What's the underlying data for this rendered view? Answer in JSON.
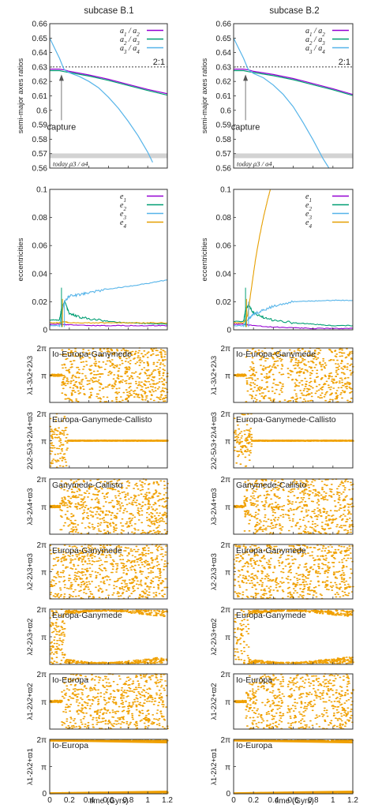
{
  "figure": {
    "columns": [
      {
        "title": "subcase B.1"
      },
      {
        "title": "subcase B.2"
      }
    ],
    "xlabel": "time (Gyrs)"
  },
  "colors": {
    "a1_a2": "#9400d3",
    "a2_a3": "#009e73",
    "a3_a4": "#56b4e9",
    "e4": "#e69f00",
    "angles": "#f0a000",
    "today_band": "#d3d3d3",
    "axes": "#333333"
  },
  "chart_data": [
    {
      "id": "ratios-b1",
      "type": "line",
      "ylabel": "semi-major axes ratios",
      "xlim": [
        0,
        1.2
      ],
      "ylim": [
        0.56,
        0.66
      ],
      "x_ticks": [
        "0",
        "0.2",
        "0.4",
        "0.6",
        "0.8",
        "1",
        "1.2"
      ],
      "y_ticks": [
        "0.56",
        "0.57",
        "0.58",
        "0.59",
        "0.6",
        "0.61",
        "0.62",
        "0.63",
        "0.64",
        "0.65",
        "0.66"
      ],
      "legend": [
        "a1 / a2",
        "a2 / a3",
        "a3 / a4"
      ],
      "legend_position": "top-right",
      "reference_line": {
        "y": 0.63,
        "label": "2:1"
      },
      "today_band": {
        "y": 0.5685,
        "label": "today a3 / a4"
      },
      "annotation": {
        "text": "capture",
        "x": 0.12,
        "y": 0.627
      },
      "series": [
        {
          "name": "a1 / a2",
          "x": [
            0,
            0.1,
            0.15,
            0.2,
            0.4,
            0.6,
            0.8,
            1.0,
            1.2
          ],
          "values": [
            0.6285,
            0.6285,
            0.628,
            0.627,
            0.6245,
            0.6215,
            0.618,
            0.6145,
            0.6115
          ]
        },
        {
          "name": "a2 / a3",
          "x": [
            0,
            0.1,
            0.15,
            0.2,
            0.4,
            0.6,
            0.8,
            1.0,
            1.2
          ],
          "values": [
            0.6275,
            0.6275,
            0.6268,
            0.6262,
            0.6237,
            0.6207,
            0.6172,
            0.6137,
            0.6105
          ]
        },
        {
          "name": "a3 / a4",
          "x": [
            0,
            0.05,
            0.1,
            0.13,
            0.15,
            0.2,
            0.3,
            0.4,
            0.5,
            0.6,
            0.7,
            0.8,
            0.9,
            1.0,
            1.05
          ],
          "values": [
            0.65,
            0.643,
            0.636,
            0.631,
            0.628,
            0.626,
            0.6235,
            0.62,
            0.6155,
            0.609,
            0.6015,
            0.5925,
            0.5825,
            0.571,
            0.564
          ]
        }
      ]
    },
    {
      "id": "ratios-b2",
      "type": "line",
      "ylabel": "semi-major axes ratios",
      "xlim": [
        0,
        1.2
      ],
      "ylim": [
        0.56,
        0.66
      ],
      "x_ticks": [
        "0",
        "0.2",
        "0.4",
        "0.6",
        "0.8",
        "1",
        "1.2"
      ],
      "y_ticks": [
        "0.56",
        "0.57",
        "0.58",
        "0.59",
        "0.6",
        "0.61",
        "0.62",
        "0.63",
        "0.64",
        "0.65",
        "0.66"
      ],
      "legend": [
        "a1 / a2",
        "a2 / a3",
        "a3 / a4"
      ],
      "legend_position": "top-right",
      "reference_line": {
        "y": 0.63,
        "label": "2:1"
      },
      "today_band": {
        "y": 0.5685,
        "label": "today a3 / a4"
      },
      "annotation": {
        "text": "capture",
        "x": 0.12,
        "y": 0.627
      },
      "series": [
        {
          "name": "a1 / a2",
          "x": [
            0,
            0.1,
            0.15,
            0.2,
            0.4,
            0.6,
            0.8,
            1.0,
            1.2
          ],
          "values": [
            0.6285,
            0.6285,
            0.628,
            0.627,
            0.6248,
            0.622,
            0.6185,
            0.615,
            0.611
          ]
        },
        {
          "name": "a2 / a3",
          "x": [
            0,
            0.1,
            0.15,
            0.2,
            0.4,
            0.6,
            0.8,
            1.0,
            1.2
          ],
          "values": [
            0.6275,
            0.6275,
            0.6268,
            0.6262,
            0.624,
            0.6212,
            0.6177,
            0.6142,
            0.6102
          ]
        },
        {
          "name": "a3 / a4",
          "x": [
            0,
            0.05,
            0.1,
            0.13,
            0.15,
            0.2,
            0.3,
            0.4,
            0.5,
            0.6,
            0.7,
            0.8,
            0.9,
            0.96
          ],
          "values": [
            0.65,
            0.643,
            0.636,
            0.631,
            0.628,
            0.6255,
            0.6225,
            0.6175,
            0.611,
            0.6025,
            0.5915,
            0.5795,
            0.5665,
            0.56
          ]
        }
      ]
    },
    {
      "id": "ecc-b1",
      "type": "line",
      "ylabel": "eccentricities",
      "xlim": [
        0,
        1.2
      ],
      "ylim": [
        0,
        0.1
      ],
      "x_ticks": [
        "0",
        "0.2",
        "0.4",
        "0.6",
        "0.8",
        "1",
        "1.2"
      ],
      "y_ticks": [
        "0",
        "0.02",
        "0.04",
        "0.06",
        "0.08",
        "0.1"
      ],
      "legend": [
        "e1",
        "e2",
        "e3",
        "e4"
      ],
      "legend_position": "top-right",
      "series": [
        {
          "name": "e1",
          "x": [
            0,
            0.1,
            0.2,
            0.4,
            0.6,
            0.8,
            1.0,
            1.2
          ],
          "values": [
            0.004,
            0.004,
            0.0035,
            0.003,
            0.003,
            0.003,
            0.003,
            0.003
          ]
        },
        {
          "name": "e2",
          "x": [
            0,
            0.1,
            0.12,
            0.15,
            0.2,
            0.3,
            0.4,
            0.6,
            0.8,
            1.0,
            1.2
          ],
          "values": [
            0.007,
            0.007,
            0.015,
            0.02,
            0.012,
            0.009,
            0.008,
            0.006,
            0.005,
            0.0045,
            0.004
          ]
        },
        {
          "name": "e3",
          "x": [
            0,
            0.1,
            0.15,
            0.2,
            0.3,
            0.4,
            0.6,
            0.8,
            1.0,
            1.2
          ],
          "values": [
            0.003,
            0.003,
            0.02,
            0.024,
            0.025,
            0.0265,
            0.029,
            0.031,
            0.033,
            0.0355
          ]
        },
        {
          "name": "e4",
          "x": [
            0,
            0.1,
            0.15,
            0.2,
            0.4,
            0.6,
            0.8,
            1.0,
            1.2
          ],
          "values": [
            0.005,
            0.005,
            0.006,
            0.005,
            0.005,
            0.005,
            0.005,
            0.005,
            0.005
          ]
        }
      ]
    },
    {
      "id": "ecc-b2",
      "type": "line",
      "ylabel": "eccentricities",
      "xlim": [
        0,
        1.2
      ],
      "ylim": [
        0,
        0.1
      ],
      "x_ticks": [
        "0",
        "0.2",
        "0.4",
        "0.6",
        "0.8",
        "1",
        "1.2"
      ],
      "y_ticks": [
        "0",
        "0.02",
        "0.04",
        "0.06",
        "0.08",
        "0.1"
      ],
      "legend": [
        "e1",
        "e2",
        "e3",
        "e4"
      ],
      "legend_position": "top-right",
      "series": [
        {
          "name": "e1",
          "x": [
            0,
            0.1,
            0.2,
            0.4,
            0.6,
            0.8,
            1.0,
            1.2
          ],
          "values": [
            0.004,
            0.004,
            0.003,
            0.002,
            0.0015,
            0.001,
            0.001,
            0.001
          ]
        },
        {
          "name": "e2",
          "x": [
            0,
            0.1,
            0.12,
            0.15,
            0.2,
            0.3,
            0.4,
            0.6,
            0.8,
            1.0,
            1.2
          ],
          "values": [
            0.006,
            0.006,
            0.014,
            0.018,
            0.012,
            0.009,
            0.007,
            0.005,
            0.004,
            0.003,
            0.003
          ]
        },
        {
          "name": "e3",
          "x": [
            0,
            0.1,
            0.15,
            0.2,
            0.3,
            0.4,
            0.6,
            0.8,
            1.0,
            1.2
          ],
          "values": [
            0.003,
            0.003,
            0.008,
            0.011,
            0.014,
            0.017,
            0.02,
            0.0205,
            0.021,
            0.021
          ]
        },
        {
          "name": "e4",
          "x": [
            0,
            0.1,
            0.14,
            0.18,
            0.22,
            0.26,
            0.3,
            0.34,
            0.37
          ],
          "values": [
            0.005,
            0.005,
            0.01,
            0.03,
            0.05,
            0.066,
            0.08,
            0.092,
            0.1
          ]
        }
      ]
    }
  ],
  "angle_panels": {
    "y_ticks": [
      "0",
      "π",
      "2π"
    ],
    "rows": [
      {
        "title": "Io-Europa-Ganymede",
        "ylabel": "λ1-3λ2+2λ3",
        "b1": {
          "locked_until": 0.12,
          "transition_end": 0.18,
          "gap": null,
          "late": "full"
        },
        "b2": {
          "locked_until": 0.12,
          "transition_end": 0.18,
          "gap": [
            0.5,
            0.54
          ],
          "late": "full"
        }
      },
      {
        "title": "Europa-Ganymede-Callisto",
        "ylabel": "2λ2-5λ3+2λ4+ϖ3",
        "b1": {
          "locked_until": 0.0,
          "transition_end": 0.18,
          "gap": null,
          "late": "locked_pi"
        },
        "b2": {
          "locked_until": 0.0,
          "transition_end": 0.18,
          "gap": null,
          "late": "locked_pi"
        }
      },
      {
        "title": "Ganymede-Callisto",
        "ylabel": "λ3-2λ4+ϖ3",
        "b1": {
          "locked_until": 0.1,
          "transition_end": 0.2,
          "gap": null,
          "late": "full"
        },
        "b2": {
          "locked_until": 0.1,
          "transition_end": 0.2,
          "gap": [
            0.5,
            0.54
          ],
          "late": "full"
        }
      },
      {
        "title": "Europa-Ganymede",
        "ylabel": "λ2-2λ3+ϖ3",
        "b1": {
          "locked_until": 0.0,
          "transition_end": 0.0,
          "gap": null,
          "late": "full"
        },
        "b2": {
          "locked_until": 0.0,
          "transition_end": 0.0,
          "gap": [
            0.5,
            0.54
          ],
          "late": "full"
        }
      },
      {
        "title": "Europa-Ganymede",
        "ylabel": "λ2-2λ3+ϖ2",
        "b1": {
          "locked_until": 0.0,
          "transition_end": 0.0,
          "gap": null,
          "late": "hourglass"
        },
        "b2": {
          "locked_until": 0.0,
          "transition_end": 0.0,
          "gap": [
            0.5,
            0.54
          ],
          "late": "hourglass"
        }
      },
      {
        "title": "Io-Europa",
        "ylabel": "λ1-2λ2+ϖ2",
        "b1": {
          "locked_until": 0.12,
          "transition_end": 0.18,
          "gap": null,
          "late": "full"
        },
        "b2": {
          "locked_until": 0.12,
          "transition_end": 0.18,
          "gap": [
            0.5,
            0.54
          ],
          "late": "full"
        }
      },
      {
        "title": "Io-Europa",
        "ylabel": "λ1-2λ2+ϖ1",
        "b1": {
          "locked_until": 0.0,
          "transition_end": 0.0,
          "gap": null,
          "late": "edges"
        },
        "b2": {
          "locked_until": 0.0,
          "transition_end": 0.0,
          "gap": null,
          "late": "edges"
        }
      }
    ]
  }
}
